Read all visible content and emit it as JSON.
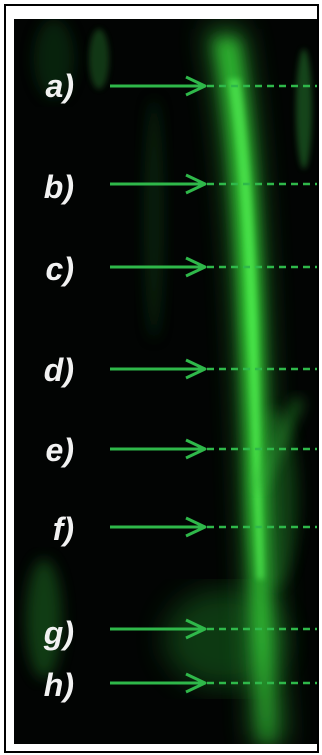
{
  "figure": {
    "colors": {
      "background": "#020403",
      "fluorescence": "#39e83a",
      "arrow": "#2fb84a",
      "label": "#f2f2f2",
      "frame": "#000000"
    },
    "markers": [
      {
        "label": "a)"
      },
      {
        "label": "b)"
      },
      {
        "label": "c)"
      },
      {
        "label": "d)"
      },
      {
        "label": "e)"
      },
      {
        "label": "f)"
      },
      {
        "label": "g)"
      },
      {
        "label": "h)"
      }
    ]
  }
}
